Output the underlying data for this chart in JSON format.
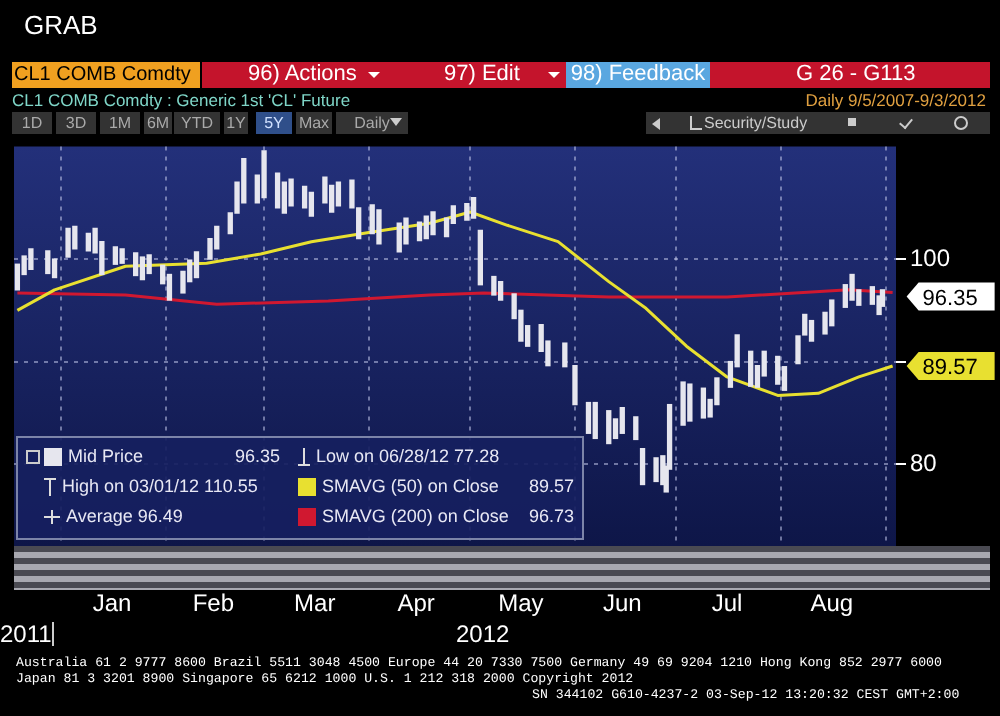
{
  "chart_data": {
    "type": "bar",
    "title": "CL1 COMB Comdty : Generic 1st 'CL' Future",
    "subtitle": "Daily 9/5/2007-9/3/2012",
    "xlim": [
      "2011-12-18",
      "2012-09-04"
    ],
    "xticks": [
      {
        "value": "2012-01-01",
        "label": null
      },
      {
        "value": "2012-01-16",
        "label": "Jan"
      },
      {
        "value": "2012-02-01",
        "label": null
      },
      {
        "value": "2012-02-15",
        "label": "Feb"
      },
      {
        "value": "2012-03-01",
        "label": null
      },
      {
        "value": "2012-03-16",
        "label": "Mar"
      },
      {
        "value": "2012-04-01",
        "label": null
      },
      {
        "value": "2012-04-15",
        "label": "Apr"
      },
      {
        "value": "2012-05-01",
        "label": null
      },
      {
        "value": "2012-05-16",
        "label": "May"
      },
      {
        "value": "2012-06-01",
        "label": null
      },
      {
        "value": "2012-06-15",
        "label": "Jun"
      },
      {
        "value": "2012-07-01",
        "label": null
      },
      {
        "value": "2012-07-16",
        "label": "Jul"
      },
      {
        "value": "2012-08-01",
        "label": null
      },
      {
        "value": "2012-08-16",
        "label": "Aug"
      },
      {
        "value": "2012-09-01",
        "label": null
      }
    ],
    "ylim": [
      72,
      111
    ],
    "yticks": [
      80,
      {
        "value": 90,
        "label": null
      },
      100
    ],
    "grid": true,
    "legend": "bottom left",
    "series": [
      {
        "name": "Mid Price",
        "color": "#e6e6ee",
        "x": [
          "2011-12-19",
          "2011-12-21",
          "2011-12-23",
          "2011-12-28",
          "2011-12-30",
          "2012-01-03",
          "2012-01-05",
          "2012-01-09",
          "2012-01-11",
          "2012-01-13",
          "2012-01-17",
          "2012-01-19",
          "2012-01-23",
          "2012-01-25",
          "2012-01-27",
          "2012-01-31",
          "2012-02-02",
          "2012-02-06",
          "2012-02-08",
          "2012-02-10",
          "2012-02-14",
          "2012-02-16",
          "2012-02-20",
          "2012-02-22",
          "2012-02-24",
          "2012-02-28",
          "2012-03-01",
          "2012-03-05",
          "2012-03-07",
          "2012-03-09",
          "2012-03-13",
          "2012-03-15",
          "2012-03-19",
          "2012-03-21",
          "2012-03-23",
          "2012-03-27",
          "2012-03-29",
          "2012-04-02",
          "2012-04-04",
          "2012-04-10",
          "2012-04-12",
          "2012-04-16",
          "2012-04-18",
          "2012-04-20",
          "2012-04-24",
          "2012-04-26",
          "2012-04-30",
          "2012-05-02",
          "2012-05-04",
          "2012-05-08",
          "2012-05-10",
          "2012-05-14",
          "2012-05-16",
          "2012-05-18",
          "2012-05-22",
          "2012-05-24",
          "2012-05-29",
          "2012-06-01",
          "2012-06-05",
          "2012-06-07",
          "2012-06-11",
          "2012-06-13",
          "2012-06-15",
          "2012-06-19",
          "2012-06-21",
          "2012-06-25",
          "2012-06-27",
          "2012-06-28",
          "2012-06-29",
          "2012-07-03",
          "2012-07-05",
          "2012-07-09",
          "2012-07-11",
          "2012-07-13",
          "2012-07-17",
          "2012-07-19",
          "2012-07-23",
          "2012-07-25",
          "2012-07-27",
          "2012-07-31",
          "2012-08-02",
          "2012-08-06",
          "2012-08-08",
          "2012-08-10",
          "2012-08-14",
          "2012-08-16",
          "2012-08-20",
          "2012-08-22",
          "2012-08-24",
          "2012-08-28",
          "2012-08-30",
          "2012-08-31"
        ],
        "base": [
          97.0,
          98.5,
          99.0,
          98.6,
          98.2,
          100.2,
          101.0,
          100.8,
          100.6,
          98.5,
          99.5,
          99.6,
          98.4,
          98.0,
          98.6,
          97.6,
          96.0,
          96.7,
          97.8,
          98.2,
          100.0,
          101.0,
          102.5,
          104.5,
          105.5,
          105.5,
          106.0,
          105.0,
          104.5,
          105.2,
          105.0,
          104.2,
          105.5,
          104.6,
          105.2,
          105.0,
          102.0,
          102.5,
          101.5,
          100.7,
          101.5,
          101.8,
          102.0,
          102.4,
          102.2,
          103.5,
          103.8,
          104.0,
          97.5,
          96.5,
          96.0,
          94.2,
          92.0,
          91.5,
          91.0,
          89.6,
          89.5,
          85.8,
          83.0,
          82.5,
          82.0,
          82.5,
          83.0,
          82.4,
          78.0,
          78.3,
          78.0,
          77.28,
          79.5,
          83.8,
          84.2,
          84.5,
          84.6,
          85.8,
          87.5,
          89.5,
          87.6,
          87.5,
          88.6,
          87.8,
          87.2,
          89.8,
          92.6,
          92.0,
          92.7,
          93.5,
          95.3,
          96.0,
          95.5,
          95.6,
          94.6,
          95.4
        ],
        "values": [
          2.5,
          1.8,
          2.0,
          2.2,
          1.8,
          2.8,
          2.2,
          1.7,
          2.4,
          3.2,
          1.7,
          1.4,
          2.2,
          2.2,
          1.8,
          1.8,
          2.5,
          2.1,
          2.1,
          2.5,
          2.0,
          2.2,
          2.0,
          3.0,
          4.3,
          2.7,
          4.55,
          3.4,
          3.0,
          2.6,
          2.1,
          2.3,
          2.5,
          2.6,
          2.3,
          2.7,
          3.0,
          2.8,
          3.3,
          2.8,
          2.5,
          1.8,
          2.2,
          2.2,
          1.8,
          1.7,
          1.6,
          2.0,
          5.3,
          1.8,
          1.8,
          2.4,
          3.0,
          2.0,
          2.6,
          2.4,
          2.3,
          3.8,
          3.0,
          3.5,
          3.2,
          1.9,
          2.5,
          2.2,
          3.5,
          2.3,
          2.8,
          2.52,
          6.3,
          4.2,
          3.6,
          2.9,
          1.7,
          2.6,
          2.5,
          3.1,
          3.4,
          2.1,
          2.4,
          2.7,
          2.3,
          2.7,
          2.0,
          2.0,
          2.1,
          2.5,
          2.2,
          2.5,
          1.5,
          1.7,
          1.8,
          1.6
        ]
      },
      {
        "name": "SMAVG (50) on Close",
        "type": "line",
        "color": "#e8e030",
        "x": [
          "2011-12-19",
          "2011-12-30",
          "2012-01-20",
          "2012-02-13",
          "2012-02-29",
          "2012-03-15",
          "2012-04-01",
          "2012-04-19",
          "2012-05-01",
          "2012-05-12",
          "2012-05-27",
          "2012-06-11",
          "2012-06-22",
          "2012-07-04",
          "2012-07-16",
          "2012-07-31",
          "2012-08-12",
          "2012-08-24",
          "2012-09-03"
        ],
        "values": [
          95.0,
          97.0,
          99.3,
          99.6,
          100.5,
          101.7,
          102.6,
          103.5,
          104.6,
          103.3,
          101.7,
          97.8,
          95.2,
          91.5,
          88.5,
          86.7,
          86.9,
          88.5,
          89.57
        ]
      },
      {
        "name": "SMAVG (200) on Close",
        "type": "line",
        "color": "#d01830",
        "x": [
          "2011-12-19",
          "2012-01-20",
          "2012-02-16",
          "2012-03-20",
          "2012-04-19",
          "2012-05-05",
          "2012-06-11",
          "2012-07-16",
          "2012-08-21",
          "2012-09-03"
        ],
        "values": [
          96.7,
          96.5,
          95.6,
          95.9,
          96.5,
          96.7,
          96.3,
          96.3,
          97.0,
          96.73
        ]
      }
    ],
    "annotations": [
      "GRAB",
      "CL1 COMB Comdty",
      "96) Actions",
      "97) Edit",
      "98) Feedback",
      "G 26 - G113",
      "1D",
      "3D",
      "1M",
      "6M",
      "YTD",
      "1Y",
      "5Y",
      "Max",
      "Daily",
      "Security/Study",
      "96.35",
      "High on 03/01/12 110.55",
      "Average 96.49",
      "Low on 06/28/12 77.28",
      "89.57",
      "96.73",
      {
        "text": "96.35",
        "x": "2012-09-03",
        "y": 96.35
      },
      {
        "text": "89.57",
        "x": "2012-09-03",
        "y": 89.57
      },
      "2011",
      "2012",
      "Australia 61 2 9777 8600 Brazil 5511 3048 4500 Europe 44 20 7330 7500 Germany 49 69 9204 1210 Hong Kong 852 2977 6000",
      "Japan 81 3 3201 8900 Singapore 65 6212 1000 U.S. 1 212 318 2000 Copyright 2012",
      "SN 344102 G610-4237-2 03-Sep-12 13:20:32 CEST GMT+2:00"
    ]
  }
}
